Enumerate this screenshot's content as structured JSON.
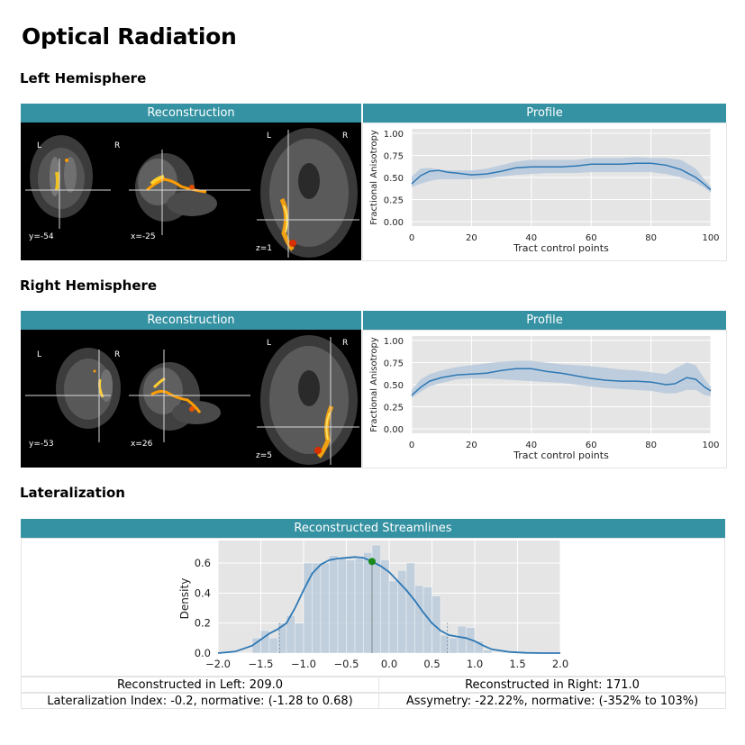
{
  "title": "Optical Radiation",
  "left": {
    "section": "Left Hemisphere",
    "recon_header": "Reconstruction",
    "profile_header": "Profile",
    "labels": {
      "L1": "L",
      "R1": "R",
      "L2": "L",
      "R2": "R"
    },
    "coords": {
      "y": "y=-54",
      "x": "x=-25",
      "z": "z=1"
    }
  },
  "right": {
    "section": "Right Hemisphere",
    "recon_header": "Reconstruction",
    "profile_header": "Profile",
    "labels": {
      "L1": "L",
      "R1": "R",
      "L2": "L",
      "R2": "R"
    },
    "coords": {
      "y": "y=-53",
      "x": "x=26",
      "z": "z=5"
    }
  },
  "lateralization": {
    "section": "Lateralization",
    "header": "Reconstructed Streamlines",
    "recon_left": "Reconstructed in Left: 209.0",
    "recon_right": "Reconstructed in Right: 171.0",
    "index": "Lateralization Index: -0.2, normative: (-1.28 to 0.68)",
    "asymmetry": "Assymetry: -22.22%, normative: (-352% to 103%)"
  },
  "chart_data": [
    {
      "type": "line",
      "id": "left-profile",
      "xlabel": "Tract control points",
      "ylabel": "Fractional Anisotropy",
      "xlim": [
        0,
        100
      ],
      "ylim": [
        -0.05,
        1.05
      ],
      "xticks": [
        0,
        20,
        40,
        60,
        80,
        100
      ],
      "yticks": [
        0.0,
        0.25,
        0.5,
        0.75,
        1.0
      ],
      "ytick_labels": [
        "0.00",
        "0.25",
        "0.50",
        "0.75",
        "1.00"
      ],
      "line_color": "#2e78b4",
      "band_color": "#b7c9dc",
      "x": [
        0,
        3,
        6,
        9,
        12,
        15,
        20,
        25,
        30,
        35,
        40,
        45,
        50,
        55,
        60,
        65,
        70,
        75,
        80,
        85,
        90,
        95,
        98,
        100
      ],
      "mean": [
        0.43,
        0.52,
        0.57,
        0.58,
        0.56,
        0.55,
        0.53,
        0.54,
        0.57,
        0.61,
        0.62,
        0.62,
        0.62,
        0.63,
        0.65,
        0.65,
        0.65,
        0.66,
        0.66,
        0.64,
        0.59,
        0.5,
        0.42,
        0.36
      ],
      "lower": [
        0.39,
        0.43,
        0.46,
        0.48,
        0.48,
        0.48,
        0.48,
        0.49,
        0.51,
        0.53,
        0.54,
        0.55,
        0.55,
        0.55,
        0.56,
        0.56,
        0.56,
        0.56,
        0.56,
        0.54,
        0.5,
        0.44,
        0.38,
        0.33
      ],
      "upper": [
        0.51,
        0.6,
        0.61,
        0.59,
        0.58,
        0.58,
        0.58,
        0.6,
        0.64,
        0.68,
        0.7,
        0.7,
        0.7,
        0.7,
        0.72,
        0.72,
        0.72,
        0.73,
        0.72,
        0.72,
        0.7,
        0.6,
        0.47,
        0.4
      ]
    },
    {
      "type": "line",
      "id": "right-profile",
      "xlabel": "Tract control points",
      "ylabel": "Fractional Anisotropy",
      "xlim": [
        0,
        100
      ],
      "ylim": [
        -0.05,
        1.05
      ],
      "xticks": [
        0,
        20,
        40,
        60,
        80,
        100
      ],
      "yticks": [
        0.0,
        0.25,
        0.5,
        0.75,
        1.0
      ],
      "ytick_labels": [
        "0.00",
        "0.25",
        "0.50",
        "0.75",
        "1.00"
      ],
      "line_color": "#2e78b4",
      "band_color": "#b7c9dc",
      "x": [
        0,
        3,
        6,
        10,
        15,
        20,
        25,
        30,
        35,
        40,
        45,
        50,
        55,
        60,
        65,
        70,
        75,
        80,
        85,
        88,
        92,
        95,
        98,
        100
      ],
      "mean": [
        0.38,
        0.47,
        0.54,
        0.58,
        0.61,
        0.62,
        0.63,
        0.66,
        0.68,
        0.68,
        0.65,
        0.63,
        0.6,
        0.57,
        0.55,
        0.54,
        0.54,
        0.53,
        0.5,
        0.51,
        0.58,
        0.56,
        0.47,
        0.43
      ],
      "lower": [
        0.35,
        0.42,
        0.48,
        0.52,
        0.56,
        0.57,
        0.57,
        0.56,
        0.55,
        0.54,
        0.53,
        0.52,
        0.5,
        0.48,
        0.46,
        0.45,
        0.44,
        0.43,
        0.4,
        0.4,
        0.44,
        0.44,
        0.38,
        0.37
      ],
      "upper": [
        0.44,
        0.56,
        0.62,
        0.66,
        0.7,
        0.72,
        0.74,
        0.76,
        0.77,
        0.77,
        0.75,
        0.73,
        0.72,
        0.71,
        0.69,
        0.67,
        0.66,
        0.64,
        0.62,
        0.68,
        0.75,
        0.72,
        0.56,
        0.48
      ]
    },
    {
      "type": "area",
      "id": "streamlines-density",
      "ylabel": "Density",
      "xlim": [
        -2.0,
        2.0
      ],
      "ylim": [
        0,
        0.75
      ],
      "xticks": [
        -2.0,
        -1.5,
        -1.0,
        -0.5,
        0.0,
        0.5,
        1.0,
        1.5,
        2.0
      ],
      "xtick_labels": [
        "−2.0",
        "−1.5",
        "−1.0",
        "−0.5",
        "0.0",
        "0.5",
        "1.0",
        "1.5",
        "2.0"
      ],
      "yticks": [
        0.0,
        0.2,
        0.4,
        0.6
      ],
      "ytick_labels": [
        "0.0",
        "0.2",
        "0.4",
        "0.6"
      ],
      "marker_x": -0.2,
      "marker_y": 0.61,
      "norm_lines": [
        -1.28,
        0.68
      ],
      "hist_bins": [
        -1.6,
        -1.5,
        -1.4,
        -1.3,
        -1.2,
        -1.1,
        -1.0,
        -0.9,
        -0.8,
        -0.7,
        -0.6,
        -0.5,
        -0.4,
        -0.3,
        -0.2,
        -0.1,
        0.0,
        0.1,
        0.2,
        0.3,
        0.4,
        0.5,
        0.6,
        0.7,
        0.8,
        0.9,
        1.0,
        1.1
      ],
      "hist_heights": [
        0.1,
        0.15,
        0.1,
        0.2,
        0.25,
        0.2,
        0.6,
        0.6,
        0.6,
        0.65,
        0.63,
        0.62,
        0.63,
        0.67,
        0.72,
        0.62,
        0.48,
        0.55,
        0.6,
        0.45,
        0.44,
        0.38,
        0.12,
        0.1,
        0.18,
        0.17,
        0.08,
        0.02
      ],
      "kde_x": [
        -2.0,
        -1.8,
        -1.6,
        -1.5,
        -1.4,
        -1.3,
        -1.2,
        -1.1,
        -1.0,
        -0.9,
        -0.8,
        -0.7,
        -0.6,
        -0.5,
        -0.4,
        -0.3,
        -0.2,
        -0.1,
        0.0,
        0.1,
        0.2,
        0.3,
        0.4,
        0.5,
        0.6,
        0.7,
        0.8,
        0.9,
        1.0,
        1.1,
        1.2,
        1.4,
        1.6,
        1.8,
        2.0
      ],
      "kde_y": [
        0.0,
        0.01,
        0.05,
        0.09,
        0.13,
        0.16,
        0.2,
        0.3,
        0.42,
        0.53,
        0.59,
        0.62,
        0.63,
        0.635,
        0.64,
        0.635,
        0.61,
        0.58,
        0.54,
        0.48,
        0.42,
        0.35,
        0.27,
        0.2,
        0.15,
        0.12,
        0.11,
        0.1,
        0.08,
        0.05,
        0.025,
        0.008,
        0.002,
        0.0,
        0.0
      ]
    }
  ]
}
